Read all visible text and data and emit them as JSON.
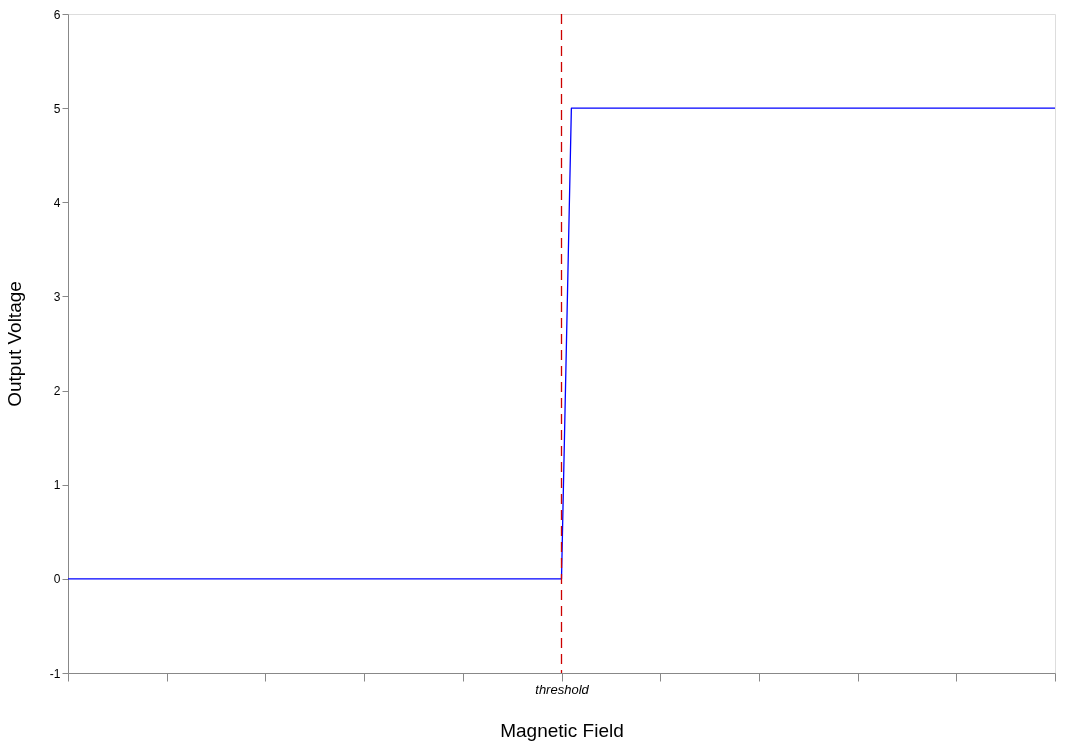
{
  "chart_data": {
    "type": "line",
    "xlabel": "Magnetic Field",
    "ylabel": "Output Voltage",
    "categories": [
      null,
      null,
      null,
      null,
      null,
      null,
      null,
      null,
      null,
      null,
      null,
      null,
      null,
      null,
      null,
      null,
      null,
      null,
      null,
      null,
      null,
      null,
      null,
      null,
      null,
      null,
      null,
      null,
      null,
      null,
      null,
      null,
      null,
      null,
      null,
      null,
      null,
      null,
      null,
      null,
      null,
      null,
      null,
      null,
      null,
      null,
      null,
      null,
      null,
      null,
      "threshold",
      null,
      null,
      null,
      null,
      null,
      null,
      null,
      null,
      null,
      null,
      null,
      null,
      null,
      null,
      null,
      null,
      null,
      null,
      null,
      null,
      null,
      null,
      null,
      null,
      null,
      null,
      null,
      null,
      null,
      null,
      null,
      null,
      null,
      null,
      null,
      null,
      null,
      null,
      null,
      null,
      null,
      null,
      null,
      null,
      null,
      null,
      null,
      null,
      null,
      null
    ],
    "ylim": [
      -1,
      6
    ],
    "yticks": [
      -1,
      0,
      1,
      2,
      3,
      4,
      5,
      6
    ],
    "series": [
      {
        "color": "#0000ff",
        "values": [
          0,
          0,
          0,
          0,
          0,
          0,
          0,
          0,
          0,
          0,
          0,
          0,
          0,
          0,
          0,
          0,
          0,
          0,
          0,
          0,
          0,
          0,
          0,
          0,
          0,
          0,
          0,
          0,
          0,
          0,
          0,
          0,
          0,
          0,
          0,
          0,
          0,
          0,
          0,
          0,
          0,
          0,
          0,
          0,
          0,
          0,
          0,
          0,
          0,
          0,
          0,
          5,
          5,
          5,
          5,
          5,
          5,
          5,
          5,
          5,
          5,
          5,
          5,
          5,
          5,
          5,
          5,
          5,
          5,
          5,
          5,
          5,
          5,
          5,
          5,
          5,
          5,
          5,
          5,
          5,
          5,
          5,
          5,
          5,
          5,
          5,
          5,
          5,
          5,
          5,
          5,
          5,
          5,
          5,
          5,
          5,
          5,
          5,
          5,
          5,
          5
        ]
      }
    ],
    "ref_lines": [
      {
        "axis": "x",
        "value": "threshold",
        "color": "#cc0000",
        "line_style": "dashed"
      }
    ],
    "grid": false,
    "marker": "none",
    "line_style": "solid"
  }
}
